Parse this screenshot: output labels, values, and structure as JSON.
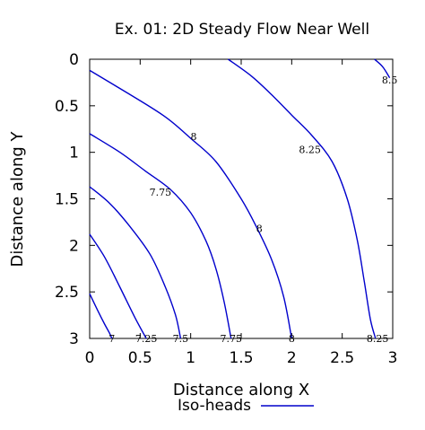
{
  "chart_data": {
    "type": "contour",
    "title": "Ex. 01: 2D Steady Flow Near Well",
    "xlabel": "Distance along X",
    "ylabel": "Distance along Y",
    "xlim": [
      0,
      3
    ],
    "ylim": [
      3,
      0
    ],
    "y_axis_inverted": true,
    "xticks": [
      "0",
      "0.5",
      "1",
      "1.5",
      "2",
      "2.5",
      "3"
    ],
    "yticks": [
      "0",
      "0.5",
      "1",
      "1.5",
      "2",
      "2.5",
      "3"
    ],
    "legend": {
      "position": "bottom-right",
      "entries": [
        {
          "label": "Iso-heads",
          "color": "#0000cc"
        }
      ]
    },
    "line_color": "#0000cc",
    "contours": [
      {
        "level": "7",
        "label_at": [
          0.22,
          3.0
        ],
        "points": [
          [
            0,
            2.52
          ],
          [
            0.08,
            2.7
          ],
          [
            0.15,
            2.85
          ],
          [
            0.2,
            2.95
          ],
          [
            0.22,
            3.0
          ]
        ]
      },
      {
        "level": "7.25",
        "label_at": [
          0.56,
          3.0
        ],
        "points": [
          [
            0,
            1.88
          ],
          [
            0.15,
            2.13
          ],
          [
            0.3,
            2.45
          ],
          [
            0.45,
            2.78
          ],
          [
            0.56,
            3.0
          ]
        ]
      },
      {
        "level": "7.5",
        "label_at": [
          0.9,
          3.0
        ],
        "points": [
          [
            0,
            1.37
          ],
          [
            0.2,
            1.55
          ],
          [
            0.4,
            1.8
          ],
          [
            0.6,
            2.1
          ],
          [
            0.75,
            2.45
          ],
          [
            0.85,
            2.75
          ],
          [
            0.9,
            3.0
          ]
        ]
      },
      {
        "level": "7.75",
        "label_at": [
          1.4,
          3.0
        ],
        "points": [
          [
            0,
            0.8
          ],
          [
            0.3,
            1.0
          ],
          [
            0.55,
            1.2
          ],
          [
            0.8,
            1.4
          ],
          [
            1.0,
            1.65
          ],
          [
            1.15,
            1.95
          ],
          [
            1.25,
            2.25
          ],
          [
            1.33,
            2.6
          ],
          [
            1.4,
            3.0
          ]
        ]
      },
      {
        "level": "8",
        "label_at": [
          2.0,
          3.0
        ],
        "points": [
          [
            0,
            0.12
          ],
          [
            0.4,
            0.38
          ],
          [
            0.75,
            0.62
          ],
          [
            1.0,
            0.85
          ],
          [
            1.25,
            1.1
          ],
          [
            1.5,
            1.5
          ],
          [
            1.65,
            1.8
          ],
          [
            1.8,
            2.15
          ],
          [
            1.92,
            2.55
          ],
          [
            2.0,
            3.0
          ]
        ]
      },
      {
        "level": "8.25",
        "label_at": [
          2.85,
          3.0
        ],
        "points": [
          [
            1.37,
            0
          ],
          [
            1.6,
            0.18
          ],
          [
            1.8,
            0.38
          ],
          [
            2.0,
            0.6
          ],
          [
            2.2,
            0.82
          ],
          [
            2.4,
            1.1
          ],
          [
            2.55,
            1.5
          ],
          [
            2.65,
            1.95
          ],
          [
            2.72,
            2.4
          ],
          [
            2.78,
            2.8
          ],
          [
            2.83,
            3.0
          ]
        ]
      },
      {
        "level": "8.5",
        "label_at": [
          2.97,
          0.2
        ],
        "points": [
          [
            2.82,
            0
          ],
          [
            2.9,
            0.08
          ],
          [
            2.97,
            0.2
          ]
        ]
      }
    ],
    "inline_labels": [
      {
        "text": "7",
        "x": 0.22,
        "y": 3.0
      },
      {
        "text": "7.25",
        "x": 0.56,
        "y": 3.0
      },
      {
        "text": "7.5",
        "x": 0.9,
        "y": 3.0
      },
      {
        "text": "7.75",
        "x": 1.4,
        "y": 3.0
      },
      {
        "text": "8",
        "x": 2.0,
        "y": 3.0
      },
      {
        "text": "8.25",
        "x": 2.85,
        "y": 3.0
      },
      {
        "text": "7.75",
        "x": 0.7,
        "y": 1.43
      },
      {
        "text": "8",
        "x": 1.03,
        "y": 0.83
      },
      {
        "text": "8",
        "x": 1.68,
        "y": 1.82
      },
      {
        "text": "8.25",
        "x": 2.18,
        "y": 0.97
      },
      {
        "text": "8.5",
        "x": 2.97,
        "y": 0.22
      }
    ]
  }
}
